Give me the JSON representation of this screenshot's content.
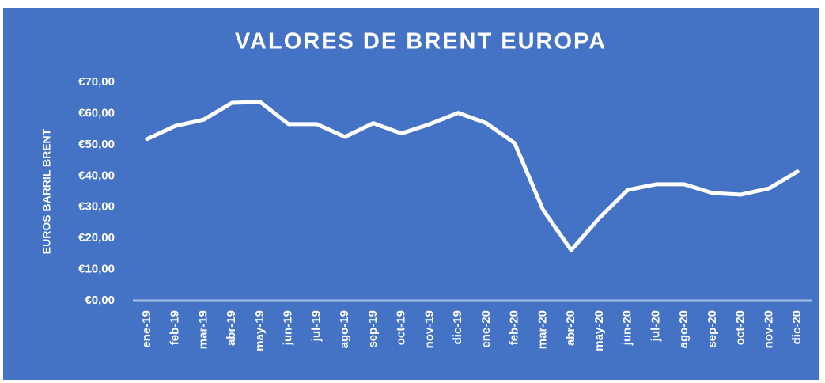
{
  "chart_data": {
    "type": "line",
    "title": "VALORES DE BRENT EUROPA",
    "y_label": "EUROS BARRIL BRENT",
    "categories": [
      "ene-19",
      "feb-19",
      "mar-19",
      "abr-19",
      "may-19",
      "jun-19",
      "jul-19",
      "ago-19",
      "sep-19",
      "oct-19",
      "nov-19",
      "dic-19",
      "ene-20",
      "feb-20",
      "mar-20",
      "abr-20",
      "may-20",
      "jun-20",
      "jul-20",
      "ago-20",
      "sep-20",
      "oct-20",
      "nov-20",
      "dic-20"
    ],
    "series": [
      {
        "name": "Brent",
        "color": "#ffffff",
        "values": [
          51.8,
          56,
          58,
          63.4,
          63.7,
          56.6,
          56.6,
          52.5,
          56.9,
          53.6,
          56.6,
          60.2,
          56.9,
          50.5,
          29.2,
          16.2,
          26.6,
          35.5,
          37.3,
          37.3,
          34.5,
          34,
          36,
          41.4
        ]
      }
    ],
    "ylim": [
      0,
      70
    ],
    "yticks": [
      {
        "value": 0,
        "label": "€0,00"
      },
      {
        "value": 10,
        "label": "€10,00"
      },
      {
        "value": 20,
        "label": "€20,00"
      },
      {
        "value": 30,
        "label": "€30,00"
      },
      {
        "value": 40,
        "label": "€40,00"
      },
      {
        "value": 50,
        "label": "€50,00"
      },
      {
        "value": 60,
        "label": "€60,00"
      },
      {
        "value": 70,
        "label": "€70,00"
      }
    ],
    "drop_lines": true
  }
}
